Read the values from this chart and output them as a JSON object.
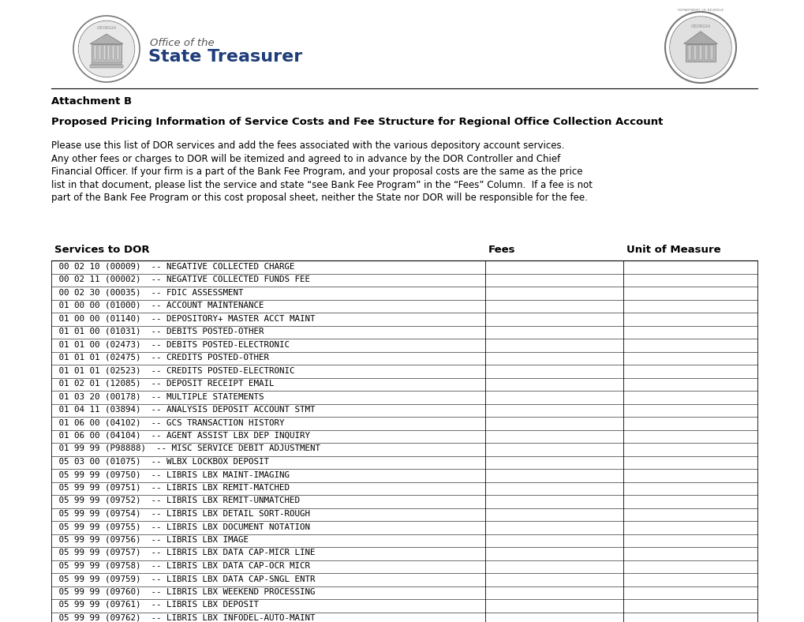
{
  "page_bg": "#ffffff",
  "attachment_label": "Attachment B",
  "title": "Proposed Pricing Information of Service Costs and Fee Structure for Regional Office Collection Account",
  "body_text_lines": [
    "Please use this list of DOR services and add the fees associated with the various depository account services.",
    "Any other fees or charges to DOR will be itemized and agreed to in advance by the DOR Controller and Chief",
    "Financial Officer. If your firm is a part of the Bank Fee Program, and your proposal costs are the same as the price",
    "list in that document, please list the service and state “see Bank Fee Program” in the “Fees” Column.  If a fee is not",
    "part of the Bank Fee Program or this cost proposal sheet, neither the State nor DOR will be responsible for the fee."
  ],
  "col_headers": [
    "Services to DOR",
    "Fees",
    "Unit of Measure"
  ],
  "rows": [
    " 00 02 10 (00009)  -- NEGATIVE COLLECTED CHARGE",
    " 00 02 11 (00002)  -- NEGATIVE COLLECTED FUNDS FEE",
    " 00 02 30 (00035)  -- FDIC ASSESSMENT",
    " 01 00 00 (01000)  -- ACCOUNT MAINTENANCE",
    " 01 00 00 (01140)  -- DEPOSITORY+ MASTER ACCT MAINT",
    " 01 01 00 (01031)  -- DEBITS POSTED-OTHER",
    " 01 01 00 (02473)  -- DEBITS POSTED-ELECTRONIC",
    " 01 01 01 (02475)  -- CREDITS POSTED-OTHER",
    " 01 01 01 (02523)  -- CREDITS POSTED-ELECTRONIC",
    " 01 02 01 (12085)  -- DEPOSIT RECEIPT EMAIL",
    " 01 03 20 (00178)  -- MULTIPLE STATEMENTS",
    " 01 04 11 (03894)  -- ANALYSIS DEPOSIT ACCOUNT STMT",
    " 01 06 00 (04102)  -- GCS TRANSACTION HISTORY",
    " 01 06 00 (04104)  -- AGENT ASSIST LBX DEP INQUIRY",
    " 01 99 99 (P98888)  -- MISC SERVICE DEBIT ADJUSTMENT",
    " 05 03 00 (01075)  -- WLBX LOCKBOX DEPOSIT",
    " 05 99 99 (09750)  -- LIBRIS LBX MAINT-IMAGING",
    " 05 99 99 (09751)  -- LIBRIS LBX REMIT-MATCHED",
    " 05 99 99 (09752)  -- LIBRIS LBX REMIT-UNMATCHED",
    " 05 99 99 (09754)  -- LIBRIS LBX DETAIL SORT-ROUGH",
    " 05 99 99 (09755)  -- LIBRIS LBX DOCUMENT NOTATION",
    " 05 99 99 (09756)  -- LIBRIS LBX IMAGE",
    " 05 99 99 (09757)  -- LIBRIS LBX DATA CAP-MICR LINE",
    " 05 99 99 (09758)  -- LIBRIS LBX DATA CAP-OCR MICR",
    " 05 99 99 (09759)  -- LIBRIS LBX DATA CAP-SNGL ENTR",
    " 05 99 99 (09760)  -- LIBRIS LBX WEEKEND PROCESSING",
    " 05 99 99 (09761)  -- LIBRIS LBX DEPOSIT",
    " 05 99 99 (09762)  -- LIBRIS LBX INFODEL-AUTO-MAINT"
  ],
  "logo_left_text1": "Office of the",
  "logo_left_text2": "State Treasurer",
  "seal_color": "#aaaaaa",
  "seal_edge": "#777777",
  "blue_color": "#1f3d7a",
  "black": "#000000",
  "gray": "#888888"
}
